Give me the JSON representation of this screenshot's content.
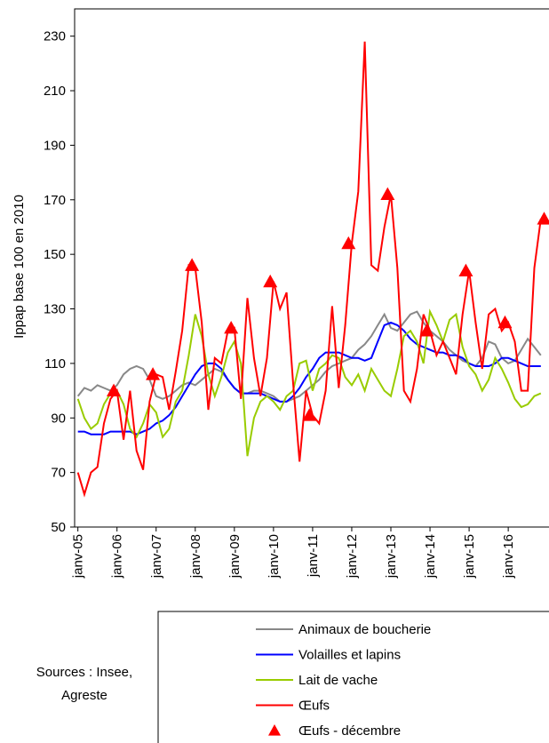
{
  "chart_data": {
    "type": "line",
    "y_label": "Ippap base 100 en 2010",
    "source": "Sources : Insee, Agreste",
    "x": [
      0,
      2,
      4,
      6,
      8,
      10,
      12,
      14,
      16,
      18,
      20,
      22,
      24,
      26,
      28,
      30,
      32,
      34,
      36,
      38,
      40,
      42,
      44,
      46,
      48,
      50,
      52,
      54,
      56,
      58,
      60,
      62,
      64,
      66,
      68,
      70,
      72,
      74,
      76,
      78,
      80,
      82,
      84,
      86,
      88,
      90,
      92,
      94,
      96,
      98,
      100,
      102,
      104,
      106,
      108,
      110,
      112,
      114,
      116,
      118,
      120,
      122,
      124,
      126,
      128,
      130,
      132,
      134,
      136,
      138,
      140,
      142
    ],
    "xlim": [
      -1,
      144.5
    ],
    "xticks": [
      {
        "value": 0,
        "label": "janv-05"
      },
      {
        "value": 12,
        "label": "janv-06"
      },
      {
        "value": 24,
        "label": "janv-07"
      },
      {
        "value": 36,
        "label": "janv-08"
      },
      {
        "value": 48,
        "label": "janv-09"
      },
      {
        "value": 60,
        "label": "janv-10"
      },
      {
        "value": 72,
        "label": "janv-11"
      },
      {
        "value": 84,
        "label": "janv-12"
      },
      {
        "value": 96,
        "label": "janv-13"
      },
      {
        "value": 108,
        "label": "janv-14"
      },
      {
        "value": 120,
        "label": "janv-15"
      },
      {
        "value": 132,
        "label": "janv-16"
      }
    ],
    "ylim": [
      50,
      240
    ],
    "yticks": [
      50,
      70,
      90,
      110,
      130,
      150,
      170,
      190,
      210,
      230
    ],
    "series": [
      {
        "name": "Animaux de boucherie",
        "color": "#888888",
        "values": [
          98,
          101,
          100,
          102,
          101,
          100,
          102,
          106,
          108,
          109,
          108,
          104,
          98,
          97,
          98,
          100,
          102,
          103,
          102,
          104,
          106,
          108,
          107,
          104,
          101,
          99,
          99,
          100,
          100,
          99,
          98,
          96,
          96,
          97,
          98,
          100,
          102,
          104,
          107,
          109,
          110,
          111,
          112,
          115,
          117,
          120,
          124,
          128,
          123,
          122,
          125,
          128,
          129,
          125,
          122,
          120,
          118,
          115,
          113,
          111,
          110,
          109,
          112,
          118,
          117,
          112,
          110,
          111,
          115,
          119,
          116,
          113
        ]
      },
      {
        "name": "Volailles et lapins",
        "color": "#0000ff",
        "values": [
          85,
          85,
          84,
          84,
          84,
          85,
          85,
          85,
          85,
          84,
          85,
          86,
          88,
          89,
          91,
          94,
          98,
          102,
          106,
          109,
          110,
          110,
          108,
          104,
          101,
          99,
          99,
          99,
          99,
          98,
          97,
          96,
          96,
          98,
          101,
          105,
          108,
          112,
          114,
          114,
          114,
          113,
          112,
          112,
          111,
          112,
          118,
          124,
          125,
          124,
          122,
          119,
          117,
          116,
          115,
          114,
          114,
          113,
          113,
          112,
          110,
          109,
          109,
          109,
          110,
          112,
          112,
          111,
          110,
          109,
          109,
          109
        ]
      },
      {
        "name": "Lait de vache",
        "color": "#99cc00",
        "values": [
          97,
          90,
          86,
          88,
          95,
          99,
          100,
          95,
          86,
          83,
          88,
          95,
          92,
          83,
          86,
          96,
          100,
          113,
          128,
          120,
          106,
          98,
          105,
          114,
          118,
          110,
          76,
          90,
          96,
          98,
          96,
          93,
          98,
          100,
          110,
          111,
          100,
          108,
          110,
          113,
          112,
          105,
          102,
          106,
          100,
          108,
          104,
          100,
          98,
          108,
          120,
          122,
          118,
          110,
          129,
          124,
          118,
          126,
          128,
          116,
          109,
          106,
          100,
          104,
          112,
          108,
          103,
          97,
          94,
          95,
          98,
          99
        ]
      },
      {
        "name": "Œufs",
        "color": "#ff0000",
        "values": [
          70,
          62,
          70,
          72,
          88,
          97,
          100,
          82,
          100,
          78,
          71,
          96,
          106,
          105,
          93,
          107,
          122,
          146,
          145,
          125,
          93,
          112,
          110,
          122,
          123,
          97,
          134,
          112,
          98,
          112,
          140,
          130,
          136,
          103,
          74,
          100,
          91,
          88,
          100,
          131,
          101,
          124,
          154,
          173,
          228,
          146,
          144,
          160,
          172,
          145,
          100,
          96,
          108,
          128,
          122,
          113,
          118,
          112,
          106,
          128,
          144,
          125,
          108,
          128,
          130,
          122,
          125,
          118,
          100,
          100,
          145,
          163
        ]
      },
      {
        "name": "Œufs - décembre",
        "color": "#ff0000",
        "marker": "triangle",
        "x": [
          11,
          23,
          35,
          47,
          59,
          71,
          83,
          95,
          107,
          119,
          131,
          143
        ],
        "values": [
          100,
          106,
          146,
          123,
          140,
          91,
          154,
          172,
          122,
          144,
          125,
          163
        ]
      }
    ]
  }
}
